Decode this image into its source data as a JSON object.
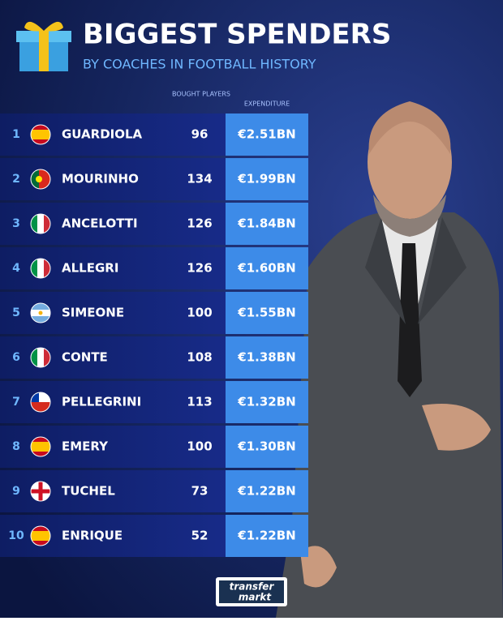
{
  "header": {
    "title": "BIGGEST SPENDERS",
    "subtitle": "BY COACHES IN FOOTBALL HISTORY"
  },
  "table": {
    "columns": [
      "BOUGHT PLAYERS",
      "EXPENDITURE"
    ],
    "rows": [
      [
        1,
        "GUARDIOLA",
        96,
        "€2.51BN"
      ],
      [
        2,
        "MOURINHO",
        134,
        "€1.99BN"
      ],
      [
        3,
        "ANCELOTTI",
        126,
        "€1.84BN"
      ],
      [
        4,
        "ALLEGRI",
        126,
        "€1.60BN"
      ],
      [
        5,
        "SIMEONE",
        100,
        "€1.55BN"
      ],
      [
        6,
        "CONTE",
        108,
        "€1.38BN"
      ],
      [
        7,
        "PELLEGRINI",
        113,
        "€1.32BN"
      ],
      [
        8,
        "EMERY",
        100,
        "€1.30BN"
      ],
      [
        9,
        "TUCHEL",
        73,
        "€1.22BN"
      ],
      [
        10,
        "ENRIQUE",
        52,
        "€1.22BN"
      ]
    ]
  },
  "logo": [
    "transfer",
    "markt"
  ]
}
